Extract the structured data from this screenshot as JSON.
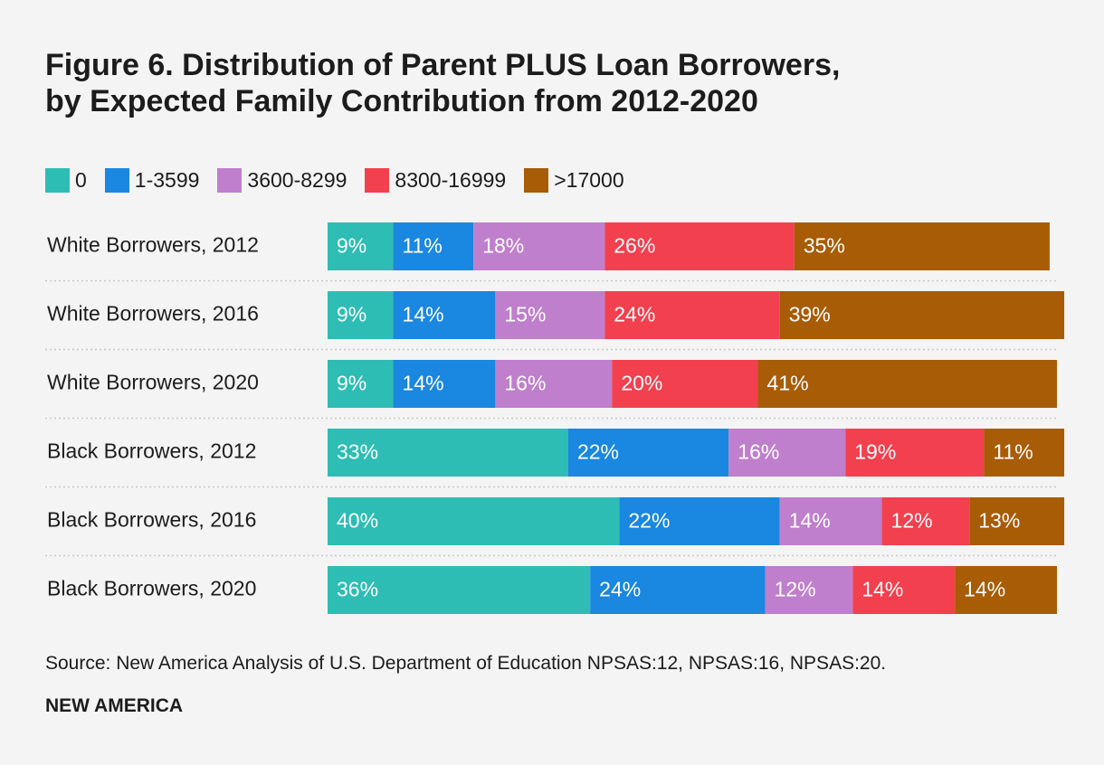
{
  "chart_data": {
    "type": "stacked-bar-horizontal",
    "title": "Figure 6. Distribution of Parent PLUS Loan Borrowers, by Expected Family Contribution from 2012-2020",
    "categories": [
      "White Borrowers, 2012",
      "White Borrowers, 2016",
      "White Borrowers, 2020",
      "Black Borrowers, 2012",
      "Black Borrowers, 2016",
      "Black Borrowers, 2020"
    ],
    "xlim": [
      0,
      100
    ],
    "series": [
      {
        "name": "0",
        "color": "#2ebdb4",
        "values": [
          9,
          9,
          9,
          33,
          40,
          36
        ],
        "value_labels": [
          "9%",
          "9%",
          "9%",
          "33%",
          "40%",
          "36%"
        ]
      },
      {
        "name": "1-3599",
        "color": "#1a87e0",
        "values": [
          11,
          14,
          14,
          22,
          22,
          24
        ],
        "value_labels": [
          "11%",
          "14%",
          "14%",
          "22%",
          "22%",
          "24%"
        ]
      },
      {
        "name": "3600-8299",
        "color": "#bf7fcc",
        "values": [
          18,
          15,
          16,
          16,
          14,
          12
        ],
        "value_labels": [
          "18%",
          "15%",
          "16%",
          "16%",
          "14%",
          "12%"
        ]
      },
      {
        "name": "8300-16999",
        "color": "#f2404f",
        "values": [
          26,
          24,
          20,
          19,
          12,
          14
        ],
        "value_labels": [
          "26%",
          "24%",
          "20%",
          "19%",
          "12%",
          "14%"
        ]
      },
      {
        "name": ">17000",
        "color": "#a85c06",
        "values": [
          35,
          39,
          41,
          11,
          13,
          14
        ],
        "value_labels": [
          "35%",
          "39%",
          "41%",
          "11%",
          "13%",
          "14%"
        ]
      }
    ],
    "source": "Source: New America Analysis of U.S. Department of Education NPSAS:12, NPSAS:16, NPSAS:20.",
    "brand": "NEW AMERICA"
  }
}
